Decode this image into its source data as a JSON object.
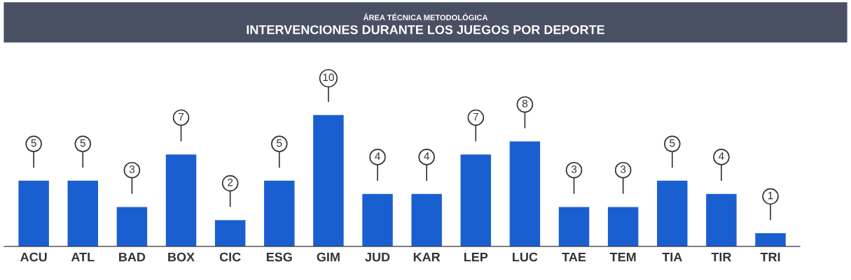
{
  "chart_data": {
    "type": "bar",
    "subtitle": "ÁREA TÉCNICA METODOLÓGICA",
    "title": "INTERVENCIONES DURANTE LOS JUEGOS POR DEPORTE",
    "categories": [
      "ACU",
      "ATL",
      "BAD",
      "BOX",
      "CIC",
      "ESG",
      "GIM",
      "JUD",
      "KAR",
      "LEP",
      "LUC",
      "TAE",
      "TEM",
      "TIA",
      "TIR",
      "TRI"
    ],
    "values": [
      5,
      5,
      3,
      7,
      2,
      5,
      10,
      4,
      4,
      7,
      8,
      3,
      3,
      5,
      4,
      1
    ],
    "color": "#1a5fd0",
    "data_labels": true,
    "grid": false,
    "legend": false
  }
}
